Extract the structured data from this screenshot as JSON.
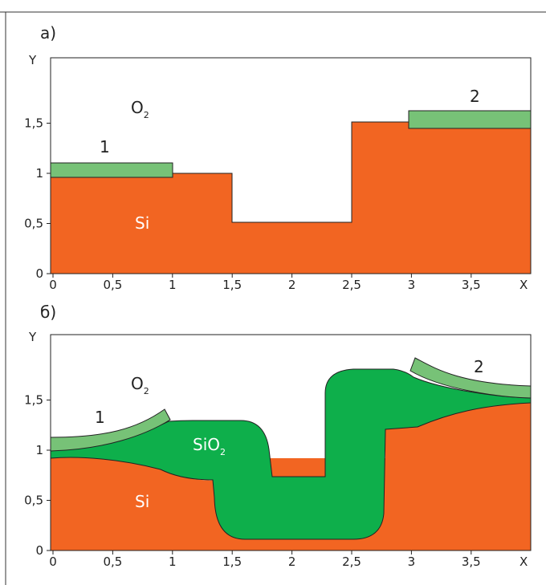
{
  "panels": [
    {
      "label": "а)",
      "axis_x": "X",
      "axis_y": "Y",
      "xticks": [
        "0",
        "0,5",
        "1",
        "1,5",
        "2",
        "2,5",
        "3",
        "3,5"
      ],
      "yticks": [
        "0",
        "0,5",
        "1",
        "1,5"
      ],
      "gas": {
        "text": "O",
        "sub": "2"
      },
      "substrate": "Si",
      "layers": [
        "1",
        "2"
      ]
    },
    {
      "label": "б)",
      "axis_x": "X",
      "axis_y": "Y",
      "xticks": [
        "0",
        "0,5",
        "1",
        "1,5",
        "2",
        "2,5",
        "3",
        "3,5"
      ],
      "yticks": [
        "0",
        "0,5",
        "1",
        "1,5"
      ],
      "gas": {
        "text": "O",
        "sub": "2"
      },
      "substrate": "Si",
      "layers": [
        "1",
        "2"
      ],
      "oxide": {
        "text": "SiO",
        "sub": "2"
      }
    }
  ]
}
